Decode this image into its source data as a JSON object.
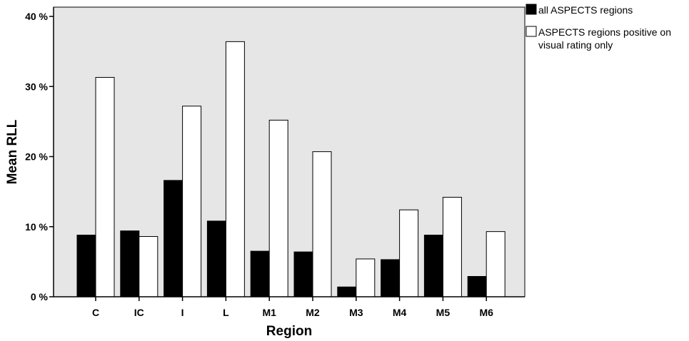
{
  "chart_data": {
    "type": "bar",
    "xlabel": "Region",
    "ylabel": "Mean RLL",
    "ylim": [
      0,
      42
    ],
    "yticks": [
      0,
      10,
      20,
      30,
      40
    ],
    "ytick_labels": [
      "0 %",
      "10 %",
      "20 %",
      "30 %",
      "40 %"
    ],
    "categories": [
      "C",
      "IC",
      "I",
      "L",
      "M1",
      "M2",
      "M3",
      "M4",
      "M5",
      "M6"
    ],
    "series": [
      {
        "name": "all ASPECTS regions",
        "color": "#000000",
        "values": [
          8.8,
          9.4,
          16.6,
          10.8,
          6.5,
          6.4,
          1.4,
          5.3,
          8.8,
          2.9
        ]
      },
      {
        "name": "ASPECTS regions positive on visual rating only",
        "color": "#ffffff",
        "values": [
          31.3,
          8.6,
          27.2,
          36.4,
          25.2,
          20.7,
          5.4,
          12.4,
          14.2,
          9.3
        ]
      }
    ],
    "legend": {
      "position": "top-right",
      "entries": [
        [
          "all ASPECTS regions"
        ],
        [
          "ASPECTS regions positive on",
          "visual rating only"
        ]
      ]
    },
    "plot_background": "#e6e6e6",
    "grid": false
  }
}
